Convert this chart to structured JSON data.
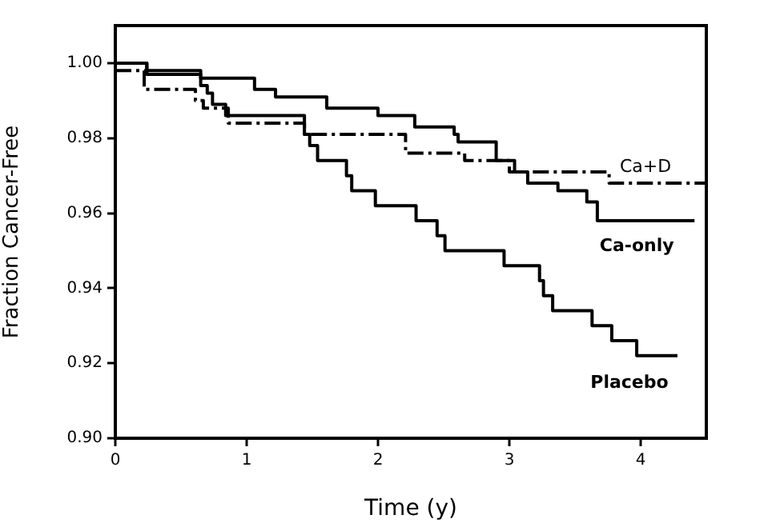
{
  "chart_data": {
    "type": "step",
    "xlabel": "Time (y)",
    "ylabel": "Fraction Cancer-Free",
    "xlim": [
      0,
      4.5
    ],
    "xticks": [
      0,
      1,
      2,
      3,
      4
    ],
    "ylim": [
      0.9,
      1.01
    ],
    "yticks": [
      {
        "value": 0.9,
        "label": "0.90"
      },
      {
        "value": 0.92,
        "label": "0.92"
      },
      {
        "value": 0.94,
        "label": "0.94"
      },
      {
        "value": 0.96,
        "label": "0.96"
      },
      {
        "value": 0.98,
        "label": "0.98"
      },
      {
        "value": 1,
        "label": "1.00"
      }
    ],
    "series": [
      {
        "name": "Ca+D",
        "color": "#000000",
        "line_style": "dashdot",
        "x": [
          0,
          0.22,
          0.61,
          0.67,
          0.86,
          1.44,
          2.21,
          2.66,
          3.0,
          3.76,
          4.5
        ],
        "values": [
          0.998,
          0.993,
          0.99,
          0.988,
          0.984,
          0.981,
          0.976,
          0.974,
          0.971,
          0.968,
          0.968
        ]
      },
      {
        "name": "Ca-only",
        "color": "#000000",
        "line_style": "solid",
        "x": [
          0,
          0.24,
          0.65,
          1.06,
          1.22,
          1.61,
          2.0,
          2.28,
          2.58,
          2.61,
          2.9,
          3.04,
          3.14,
          3.37,
          3.59,
          3.67,
          4.41
        ],
        "values": [
          1.0,
          0.998,
          0.996,
          0.993,
          0.991,
          0.988,
          0.986,
          0.983,
          0.981,
          0.979,
          0.974,
          0.971,
          0.968,
          0.966,
          0.963,
          0.958,
          0.958
        ]
      },
      {
        "name": "Placebo",
        "color": "#000000",
        "line_style": "solid",
        "x": [
          0,
          0.24,
          0.65,
          0.7,
          0.74,
          0.84,
          1.44,
          1.48,
          1.54,
          1.76,
          1.8,
          1.98,
          2.29,
          2.45,
          2.51,
          2.96,
          3.23,
          3.26,
          3.33,
          3.63,
          3.78,
          3.97,
          4.28
        ],
        "values": [
          1.0,
          0.997,
          0.994,
          0.992,
          0.989,
          0.986,
          0.981,
          0.978,
          0.974,
          0.97,
          0.966,
          0.962,
          0.958,
          0.954,
          0.95,
          0.946,
          0.942,
          0.938,
          0.934,
          0.93,
          0.926,
          0.922,
          0.922
        ]
      }
    ]
  }
}
